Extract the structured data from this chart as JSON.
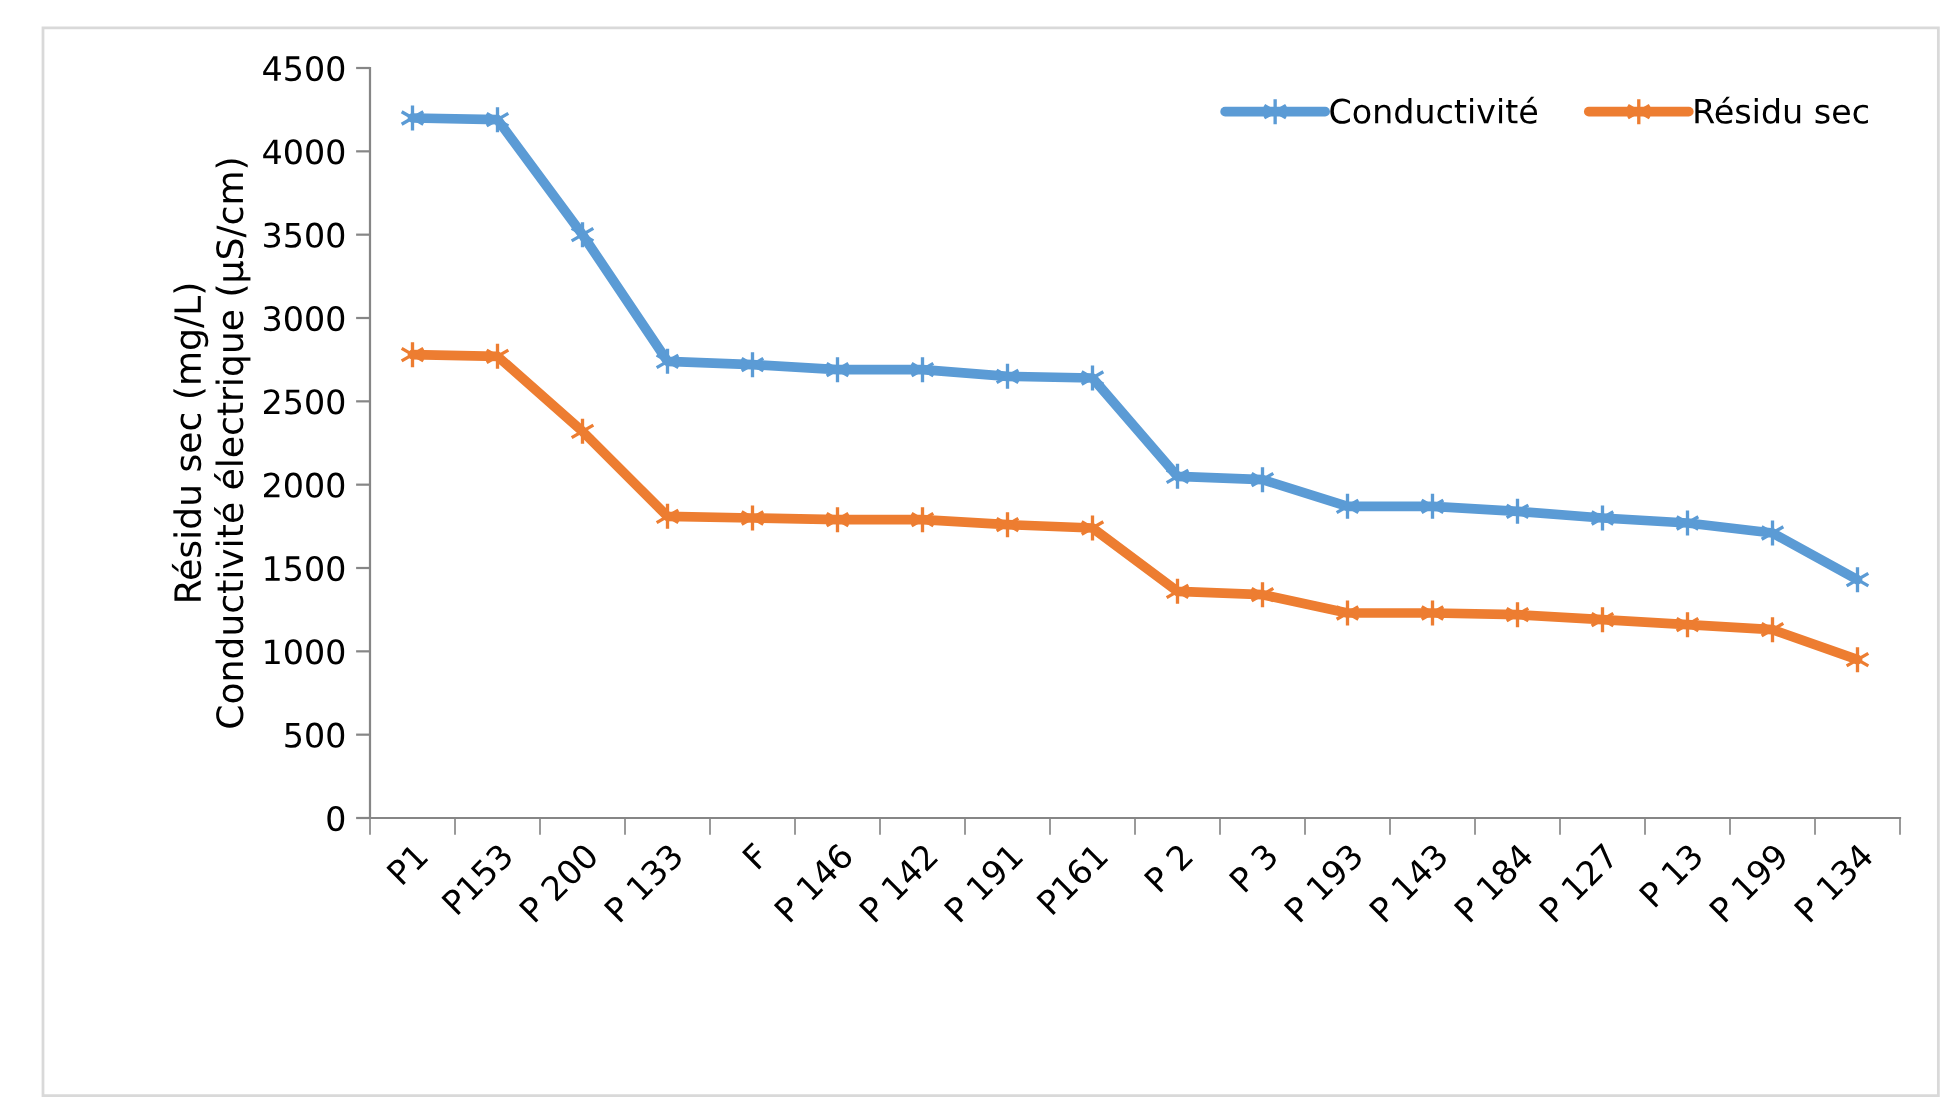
{
  "chart_data": {
    "type": "line",
    "ylabel": "Résidu sec (mg/L)\nConductivité électrique (µS/cm)",
    "categories": [
      "P1",
      "P153",
      "P 200",
      "P 133",
      "F",
      "P 146",
      "P 142",
      "P 191",
      "P161",
      "P 2",
      "P 3",
      "P 193",
      "P 143",
      "P 184",
      "P 127",
      "P 13",
      "P 199",
      "P 134"
    ],
    "series": [
      {
        "name": "Conductivité",
        "color": "#5b9bd5",
        "values": [
          4200,
          4190,
          3500,
          2740,
          2720,
          2690,
          2690,
          2650,
          2640,
          2050,
          2030,
          1870,
          1870,
          1840,
          1800,
          1770,
          1710,
          1430
        ]
      },
      {
        "name": "Résidu sec",
        "color": "#ed7d31",
        "values": [
          2780,
          2770,
          2320,
          1810,
          1800,
          1790,
          1790,
          1760,
          1740,
          1360,
          1340,
          1230,
          1230,
          1220,
          1190,
          1160,
          1130,
          950
        ]
      }
    ],
    "ylim": [
      0,
      4500
    ],
    "yticks": [
      0,
      500,
      1000,
      1500,
      2000,
      2500,
      3000,
      3500,
      4000,
      4500
    ],
    "grid": false,
    "legend": "top right",
    "marker": "cross",
    "line_style": "solid"
  }
}
